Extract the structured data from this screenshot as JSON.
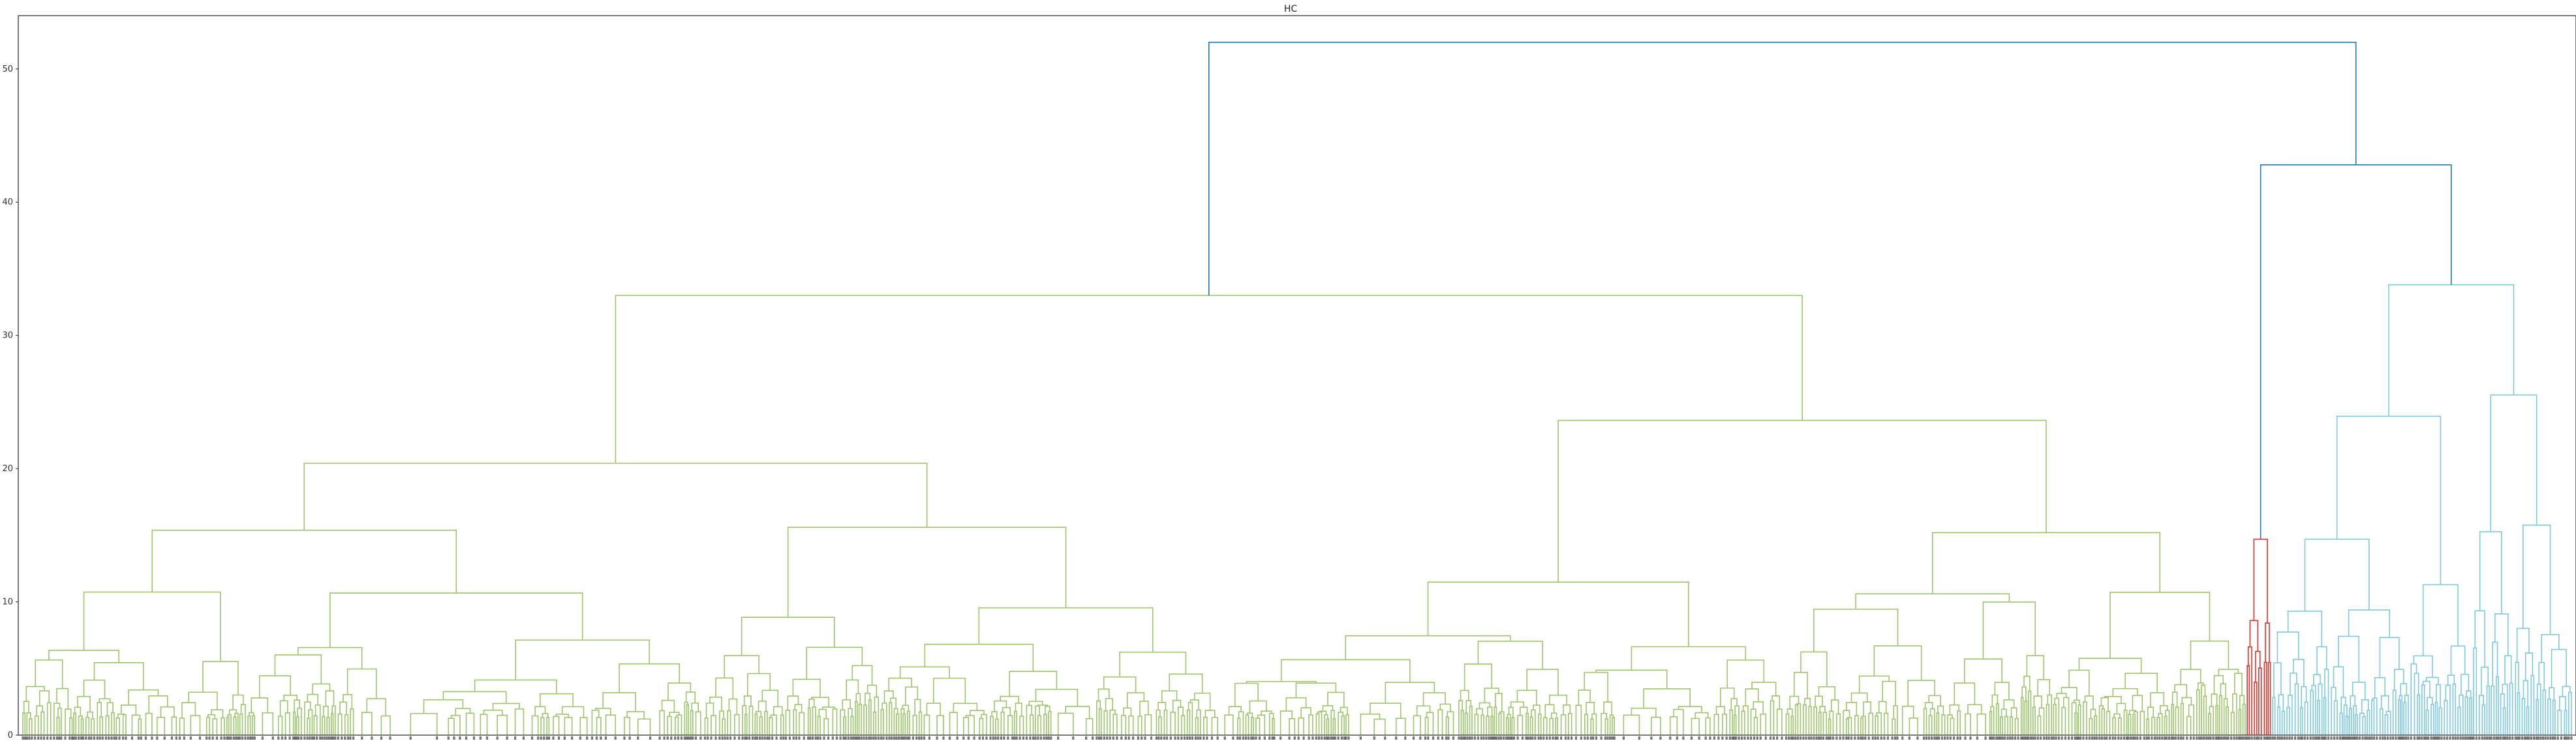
{
  "chart_data": {
    "type": "dendrogram",
    "title": "HC",
    "xlabel": "",
    "ylabel": "",
    "ylim": [
      0,
      54
    ],
    "y_ticks": [
      0,
      10,
      20,
      30,
      40,
      50
    ],
    "grid": false,
    "legend": "none",
    "leaf_labels_present": true,
    "root_merge_height": 52.0,
    "top_merges": [
      {
        "description": "green cluster (left block)",
        "height": 33.0
      },
      {
        "description": "red + cyan clusters (right block)",
        "height": 42.8
      },
      {
        "description": "red cluster vs cyan cluster",
        "height": 42.8
      },
      {
        "description": "cyan cluster root",
        "height": 33.8
      },
      {
        "description": "red cluster root",
        "height": 14.7
      }
    ],
    "clusters": [
      {
        "color": "#9dc56c",
        "root_height": 33.0,
        "leaf_share": 0.872
      },
      {
        "color": "#e0312a",
        "root_height": 14.7,
        "leaf_share": 0.01
      },
      {
        "color": "#7fc9e0",
        "root_height": 33.8,
        "leaf_share": 0.118
      }
    ],
    "link_color_above_threshold": "#1f77b4"
  }
}
